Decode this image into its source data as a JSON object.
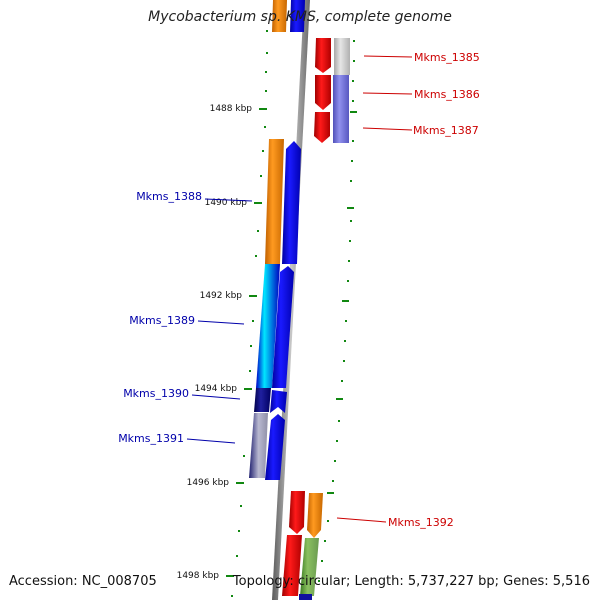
{
  "title": "Mycobacterium sp. KMS, complete genome",
  "footer": {
    "accession": "Accession: NC_008705",
    "topology": "Topology: circular; Length: 5,737,227 bp; Genes: 5,516"
  },
  "ticks": [
    "1488 kbp",
    "1490 kbp",
    "1492 kbp",
    "1494 kbp",
    "1496 kbp",
    "1498 kbp"
  ],
  "genes": {
    "right": [
      "Mkms_1385",
      "Mkms_1386",
      "Mkms_1387",
      "Mkms_1392"
    ],
    "left": [
      "Mkms_1388",
      "Mkms_1389",
      "Mkms_1390",
      "Mkms_1391"
    ]
  },
  "colors": {
    "backbone": "#888888",
    "forward_label": "#cc0000",
    "reverse_label": "#0000aa",
    "tick": "#006600"
  }
}
